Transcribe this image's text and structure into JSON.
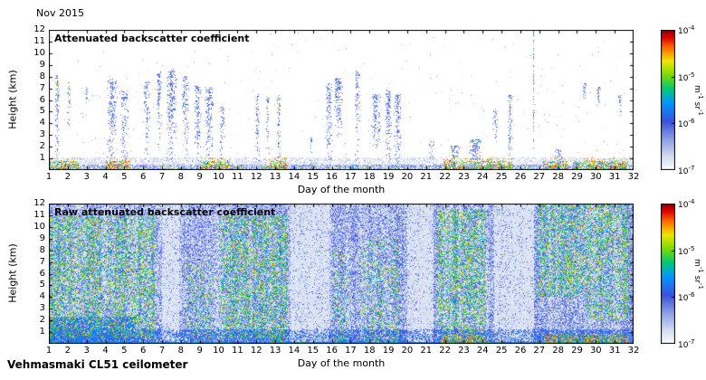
{
  "page": {
    "date_label": "Nov 2015",
    "footer": "Vehmasmaki CL51 ceilometer"
  },
  "chart_data": [
    {
      "type": "heatmap",
      "title": "Attenuated backscatter coefficient",
      "xlabel": "Day of the month",
      "ylabel": "Height (km)",
      "xlim": [
        1,
        32
      ],
      "ylim": [
        0,
        12
      ],
      "xticks": [
        1,
        2,
        3,
        4,
        5,
        6,
        7,
        8,
        9,
        10,
        11,
        12,
        13,
        14,
        15,
        16,
        17,
        18,
        19,
        20,
        21,
        22,
        23,
        24,
        25,
        26,
        27,
        28,
        29,
        30,
        31,
        32
      ],
      "yticks": [
        1,
        2,
        3,
        4,
        5,
        6,
        7,
        8,
        9,
        10,
        11,
        12
      ],
      "grid": false,
      "colorbar": {
        "scale": "log",
        "range_min": "1e-7",
        "range_max": "1e-4",
        "ticks": [
          "10^-4",
          "10^-5",
          "10^-6",
          "10^-7"
        ],
        "unit": "m^-1 sr^-1"
      },
      "render": {
        "kind": "sparse",
        "plumes": [
          {
            "d": 1.45,
            "w": 0.14,
            "top": 7.8,
            "base": 0.4,
            "p": 0.5,
            "hot": 1
          },
          {
            "d": 2.05,
            "w": 0.1,
            "top": 7.2,
            "base": 4.0,
            "p": 0.45,
            "hot": 1
          },
          {
            "d": 3.0,
            "w": 0.08,
            "top": 6.8,
            "base": 5.5,
            "p": 0.5,
            "hot": 1
          },
          {
            "d": 4.35,
            "w": 0.3,
            "top": 7.5,
            "base": 0.5,
            "p": 0.55,
            "hot": 0
          },
          {
            "d": 5.0,
            "w": 0.25,
            "top": 6.5,
            "base": 0.5,
            "p": 0.5,
            "hot": 0
          },
          {
            "d": 6.2,
            "w": 0.2,
            "top": 7.3,
            "base": 1.0,
            "p": 0.5,
            "hot": 0
          },
          {
            "d": 6.85,
            "w": 0.15,
            "top": 8.1,
            "base": 2.0,
            "p": 0.5,
            "hot": 0
          },
          {
            "d": 7.5,
            "w": 0.3,
            "top": 8.4,
            "base": 1.0,
            "p": 0.55,
            "hot": 0
          },
          {
            "d": 8.25,
            "w": 0.2,
            "top": 7.8,
            "base": 1.0,
            "p": 0.5,
            "hot": 0
          },
          {
            "d": 8.9,
            "w": 0.2,
            "top": 7.0,
            "base": 1.0,
            "p": 0.5,
            "hot": 0
          },
          {
            "d": 9.5,
            "w": 0.25,
            "top": 6.8,
            "base": 0.8,
            "p": 0.55,
            "hot": 0
          },
          {
            "d": 10.2,
            "w": 0.15,
            "top": 5.2,
            "base": 0.8,
            "p": 0.45,
            "hot": 0
          },
          {
            "d": 12.05,
            "w": 0.12,
            "top": 6.2,
            "base": 0.8,
            "p": 0.5,
            "hot": 0
          },
          {
            "d": 12.6,
            "w": 0.1,
            "top": 6.0,
            "base": 1.5,
            "p": 0.5,
            "hot": 0
          },
          {
            "d": 13.2,
            "w": 0.1,
            "top": 6.2,
            "base": 0.5,
            "p": 0.5,
            "hot": 1
          },
          {
            "d": 14.9,
            "w": 0.08,
            "top": 2.5,
            "base": 0.4,
            "p": 0.4,
            "hot": 0
          },
          {
            "d": 15.85,
            "w": 0.2,
            "top": 7.2,
            "base": 1.0,
            "p": 0.5,
            "hot": 0
          },
          {
            "d": 16.35,
            "w": 0.25,
            "top": 7.6,
            "base": 3.0,
            "p": 0.65,
            "hot": 0
          },
          {
            "d": 17.35,
            "w": 0.15,
            "top": 8.2,
            "base": 1.0,
            "p": 0.5,
            "hot": 0
          },
          {
            "d": 18.35,
            "w": 0.25,
            "top": 6.2,
            "base": 2.0,
            "p": 0.6,
            "hot": 0
          },
          {
            "d": 19.0,
            "w": 0.2,
            "top": 6.6,
            "base": 1.0,
            "p": 0.6,
            "hot": 0
          },
          {
            "d": 19.5,
            "w": 0.2,
            "top": 6.2,
            "base": 0.8,
            "p": 0.6,
            "hot": 0
          },
          {
            "d": 21.3,
            "w": 0.15,
            "top": 2.2,
            "base": 0.3,
            "p": 0.5,
            "hot": 0
          },
          {
            "d": 22.5,
            "w": 0.3,
            "top": 1.8,
            "base": 0.2,
            "p": 0.5,
            "hot": 0
          },
          {
            "d": 23.6,
            "w": 0.4,
            "top": 2.3,
            "base": 0.2,
            "p": 0.6,
            "hot": 1
          },
          {
            "d": 24.65,
            "w": 0.15,
            "top": 5.0,
            "base": 3.0,
            "p": 0.5,
            "hot": 0
          },
          {
            "d": 25.45,
            "w": 0.12,
            "top": 6.1,
            "base": 0.5,
            "p": 0.5,
            "hot": 0
          },
          {
            "d": 26.7,
            "w": 0.05,
            "top": 11.8,
            "base": 0.5,
            "p": 0.5,
            "hot": 0
          },
          {
            "d": 28.0,
            "w": 0.2,
            "top": 1.5,
            "base": 0.2,
            "p": 0.5,
            "hot": 0
          },
          {
            "d": 29.4,
            "w": 0.1,
            "top": 7.2,
            "base": 6.0,
            "p": 0.5,
            "hot": 1
          },
          {
            "d": 30.15,
            "w": 0.12,
            "top": 6.8,
            "base": 5.5,
            "p": 0.55,
            "hot": 1
          },
          {
            "d": 31.3,
            "w": 0.1,
            "top": 6.2,
            "base": 4.8,
            "p": 0.6,
            "hot": 1
          }
        ],
        "surface_hot": [
          [
            1.0,
            2.6
          ],
          [
            4.0,
            5.3
          ],
          [
            9.0,
            10.6
          ],
          [
            12.7,
            13.6
          ],
          [
            21.9,
            25.6
          ],
          [
            27.2,
            28.5
          ],
          [
            28.8,
            31.7
          ]
        ]
      }
    },
    {
      "type": "heatmap",
      "title": "Raw attenuated backscatter coefficient",
      "xlabel": "Day of the month",
      "ylabel": "Height (km)",
      "xlim": [
        1,
        32
      ],
      "ylim": [
        0,
        12
      ],
      "xticks": [
        1,
        2,
        3,
        4,
        5,
        6,
        7,
        8,
        9,
        10,
        11,
        12,
        13,
        14,
        15,
        16,
        17,
        18,
        19,
        20,
        21,
        22,
        23,
        24,
        25,
        26,
        27,
        28,
        29,
        30,
        31,
        32
      ],
      "yticks": [
        1,
        2,
        3,
        4,
        5,
        6,
        7,
        8,
        9,
        10,
        11,
        12
      ],
      "grid": false,
      "colorbar": {
        "scale": "log",
        "range_min": "1e-7",
        "range_max": "1e-4",
        "ticks": [
          "10^-4",
          "10^-5",
          "10^-6",
          "10^-7"
        ],
        "unit": "m^-1 sr^-1"
      },
      "render": {
        "kind": "dense",
        "bands": [
          {
            "from": 1.0,
            "to": 6.6,
            "s": 1.0,
            "hmin": 0.5,
            "hmax": 11.0
          },
          {
            "from": 8.3,
            "to": 9.7,
            "s": 0.45,
            "hmin": 0,
            "hmax": 7.0
          },
          {
            "from": 10.0,
            "to": 13.6,
            "s": 0.85,
            "hmin": 0.5,
            "hmax": 11.0
          },
          {
            "from": 16.0,
            "to": 17.0,
            "s": 0.4,
            "hmin": 0,
            "hmax": 8.0
          },
          {
            "from": 17.5,
            "to": 19.6,
            "s": 0.5,
            "hmin": 0,
            "hmax": 9.0
          },
          {
            "from": 21.6,
            "to": 24.2,
            "s": 1.1,
            "hmin": 1.0,
            "hmax": 11.5
          },
          {
            "from": 26.9,
            "to": 29.5,
            "s": 0.9,
            "hmin": 4.0,
            "hmax": 12.0
          },
          {
            "from": 29.5,
            "to": 31.8,
            "s": 0.9,
            "hmin": 2.0,
            "hmax": 12.0
          }
        ],
        "faint_bands": [
          [
            7.0,
            7.9
          ],
          [
            13.8,
            15.9
          ],
          [
            20.0,
            21.4
          ],
          [
            24.6,
            26.7
          ]
        ],
        "low_dense": [
          {
            "from": 1.0,
            "to": 5.6,
            "hmax": 2.3
          }
        ],
        "surface_hot": [
          [
            12.8,
            13.5
          ],
          [
            21.8,
            24.3
          ],
          [
            27.3,
            31.7
          ]
        ]
      }
    }
  ]
}
